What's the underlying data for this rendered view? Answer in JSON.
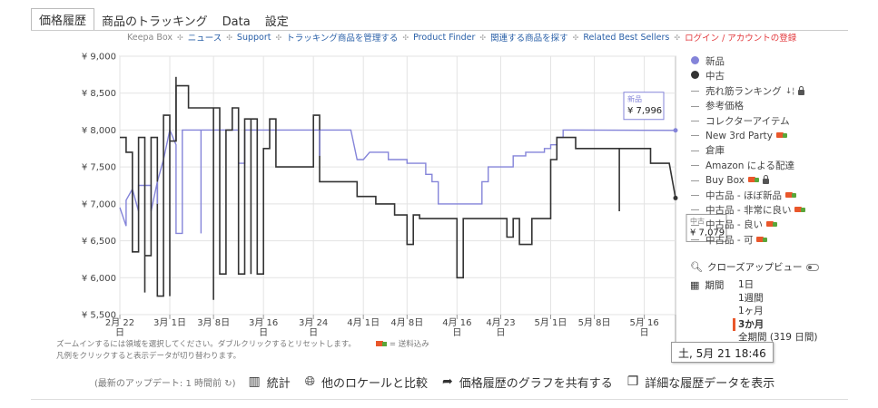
{
  "tabs": [
    {
      "label": "価格履歴",
      "active": true
    },
    {
      "label": "商品のトラッキング",
      "active": false
    },
    {
      "label": "Data",
      "active": false
    },
    {
      "label": "設定",
      "active": false
    }
  ],
  "subnav": [
    {
      "label": "Keepa Box",
      "style": "gray"
    },
    {
      "label": "ニュース",
      "style": "link"
    },
    {
      "label": "Support",
      "style": "link"
    },
    {
      "label": "トラッキング商品を管理する",
      "style": "link"
    },
    {
      "label": "Product Finder",
      "style": "link"
    },
    {
      "label": "関連する商品を探す",
      "style": "link"
    },
    {
      "label": "Related Best Sellers",
      "style": "link"
    },
    {
      "label": "ログイン / アカウントの登録",
      "style": "red"
    }
  ],
  "subnav_sep": "✣",
  "chart_data": {
    "type": "line",
    "y_ticks": [
      "¥ 9,000",
      "¥ 8,500",
      "¥ 8,000",
      "¥ 7,500",
      "¥ 7,000",
      "¥ 6,500",
      "¥ 6,000",
      "¥ 5,500"
    ],
    "ylim": [
      5500,
      9000
    ],
    "x_range": [
      "2024-02-22",
      "2024-05-21"
    ],
    "x_ticks": [
      {
        "date": "2024-02-22",
        "line1": "2月 22",
        "line2": "日"
      },
      {
        "date": "2024-03-01",
        "line1": "3月 1日",
        "line2": ""
      },
      {
        "date": "2024-03-08",
        "line1": "3月 8日",
        "line2": ""
      },
      {
        "date": "2024-03-16",
        "line1": "3月 16",
        "line2": "日"
      },
      {
        "date": "2024-03-24",
        "line1": "3月 24",
        "line2": "日"
      },
      {
        "date": "2024-04-01",
        "line1": "4月 1日",
        "line2": ""
      },
      {
        "date": "2024-04-08",
        "line1": "4月 8日",
        "line2": ""
      },
      {
        "date": "2024-04-16",
        "line1": "4月 16",
        "line2": "日"
      },
      {
        "date": "2024-04-23",
        "line1": "4月 23",
        "line2": "日"
      },
      {
        "date": "2024-05-01",
        "line1": "5月 1日",
        "line2": ""
      },
      {
        "date": "2024-05-08",
        "line1": "5月 8日",
        "line2": ""
      },
      {
        "date": "2024-05-16",
        "line1": "5月 16",
        "line2": "日"
      }
    ],
    "grid": true,
    "series": [
      {
        "name": "新品",
        "color": "#8484d9",
        "points": [
          [
            "2024-02-22",
            6950
          ],
          [
            "2024-02-23",
            6700
          ],
          [
            "2024-02-23",
            7050
          ],
          [
            "2024-02-24",
            7200
          ],
          [
            "2024-02-25",
            6900
          ],
          [
            "2024-02-25",
            7250
          ],
          [
            "2024-02-27",
            7250
          ],
          [
            "2024-02-27",
            6900
          ],
          [
            "2024-02-28",
            7300
          ],
          [
            "2024-02-29",
            7600
          ],
          [
            "2024-03-01",
            8000
          ],
          [
            "2024-03-02",
            7800
          ],
          [
            "2024-03-02",
            6600
          ],
          [
            "2024-03-03",
            6600
          ],
          [
            "2024-03-03",
            8000
          ],
          [
            "2024-03-12",
            8000
          ],
          [
            "2024-03-12",
            7550
          ],
          [
            "2024-03-13",
            7550
          ],
          [
            "2024-03-13",
            8000
          ],
          [
            "2024-03-30",
            8000
          ],
          [
            "2024-03-31",
            7600
          ],
          [
            "2024-04-01",
            7600
          ],
          [
            "2024-04-02",
            7700
          ],
          [
            "2024-04-05",
            7700
          ],
          [
            "2024-04-05",
            7600
          ],
          [
            "2024-04-08",
            7600
          ],
          [
            "2024-04-08",
            7550
          ],
          [
            "2024-04-11",
            7550
          ],
          [
            "2024-04-11",
            7400
          ],
          [
            "2024-04-12",
            7400
          ],
          [
            "2024-04-12",
            7300
          ],
          [
            "2024-04-13",
            7300
          ],
          [
            "2024-04-13",
            7000
          ],
          [
            "2024-04-20",
            7000
          ],
          [
            "2024-04-20",
            7300
          ],
          [
            "2024-04-21",
            7300
          ],
          [
            "2024-04-21",
            7500
          ],
          [
            "2024-04-25",
            7500
          ],
          [
            "2024-04-25",
            7650
          ],
          [
            "2024-04-27",
            7650
          ],
          [
            "2024-04-27",
            7700
          ],
          [
            "2024-04-30",
            7700
          ],
          [
            "2024-04-30",
            7750
          ],
          [
            "2024-05-01",
            7750
          ],
          [
            "2024-05-01",
            7800
          ],
          [
            "2024-05-02",
            7800
          ],
          [
            "2024-05-02",
            7900
          ],
          [
            "2024-05-03",
            7900
          ],
          [
            "2024-05-03",
            8000
          ],
          [
            "2024-05-21",
            7996
          ]
        ]
      },
      {
        "name": "中古",
        "color": "#333333",
        "points": [
          [
            "2024-02-22",
            7900
          ],
          [
            "2024-02-23",
            7900
          ],
          [
            "2024-02-23",
            7700
          ],
          [
            "2024-02-24",
            7700
          ],
          [
            "2024-02-24",
            6350
          ],
          [
            "2024-02-25",
            6350
          ],
          [
            "2024-02-25",
            7900
          ],
          [
            "2024-02-26",
            7900
          ],
          [
            "2024-02-26",
            5800
          ],
          [
            "2024-02-26",
            6300
          ],
          [
            "2024-02-27",
            6300
          ],
          [
            "2024-02-27",
            7900
          ],
          [
            "2024-02-28",
            7900
          ],
          [
            "2024-02-28",
            5750
          ],
          [
            "2024-02-29",
            5750
          ],
          [
            "2024-02-29",
            8200
          ],
          [
            "2024-03-01",
            8200
          ],
          [
            "2024-03-01",
            5750
          ],
          [
            "2024-03-01",
            7850
          ],
          [
            "2024-03-02",
            7850
          ],
          [
            "2024-03-02",
            8600
          ],
          [
            "2024-03-04",
            8600
          ],
          [
            "2024-03-04",
            8300
          ],
          [
            "2024-03-09",
            8300
          ],
          [
            "2024-03-09",
            6050
          ],
          [
            "2024-03-10",
            6050
          ],
          [
            "2024-03-10",
            8000
          ],
          [
            "2024-03-11",
            8000
          ],
          [
            "2024-03-11",
            8300
          ],
          [
            "2024-03-12",
            8300
          ],
          [
            "2024-03-12",
            6050
          ],
          [
            "2024-03-13",
            6050
          ],
          [
            "2024-03-13",
            8150
          ],
          [
            "2024-03-15",
            8150
          ],
          [
            "2024-03-15",
            6050
          ],
          [
            "2024-03-16",
            6050
          ],
          [
            "2024-03-16",
            7750
          ],
          [
            "2024-03-17",
            7750
          ],
          [
            "2024-03-17",
            8150
          ],
          [
            "2024-03-18",
            8150
          ],
          [
            "2024-03-18",
            7500
          ],
          [
            "2024-03-24",
            7500
          ],
          [
            "2024-03-24",
            8200
          ],
          [
            "2024-03-25",
            8200
          ],
          [
            "2024-03-25",
            7300
          ],
          [
            "2024-03-31",
            7300
          ],
          [
            "2024-03-31",
            7100
          ],
          [
            "2024-04-03",
            7100
          ],
          [
            "2024-04-03",
            7000
          ],
          [
            "2024-04-06",
            7000
          ],
          [
            "2024-04-06",
            6850
          ],
          [
            "2024-04-08",
            6850
          ],
          [
            "2024-04-08",
            6450
          ],
          [
            "2024-04-09",
            6450
          ],
          [
            "2024-04-09",
            6850
          ],
          [
            "2024-04-10",
            6850
          ],
          [
            "2024-04-10",
            6800
          ],
          [
            "2024-04-16",
            6800
          ],
          [
            "2024-04-16",
            6000
          ],
          [
            "2024-04-17",
            6000
          ],
          [
            "2024-04-17",
            6800
          ],
          [
            "2024-04-24",
            6800
          ],
          [
            "2024-04-24",
            6550
          ],
          [
            "2024-04-25",
            6550
          ],
          [
            "2024-04-25",
            6800
          ],
          [
            "2024-04-26",
            6800
          ],
          [
            "2024-04-26",
            6450
          ],
          [
            "2024-04-28",
            6450
          ],
          [
            "2024-04-28",
            6800
          ],
          [
            "2024-05-01",
            6800
          ],
          [
            "2024-05-01",
            7600
          ],
          [
            "2024-05-02",
            7600
          ],
          [
            "2024-05-02",
            7900
          ],
          [
            "2024-05-05",
            7900
          ],
          [
            "2024-05-05",
            7750
          ],
          [
            "2024-05-17",
            7750
          ],
          [
            "2024-05-17",
            7550
          ],
          [
            "2024-05-20",
            7550
          ],
          [
            "2024-05-21",
            7079
          ]
        ]
      }
    ],
    "spikes": [
      {
        "series": "新品",
        "date": "2024-02-28",
        "from": 7300,
        "to": 7000
      },
      {
        "series": "新品",
        "date": "2024-03-06",
        "from": 8000,
        "to": 6600
      },
      {
        "series": "新品",
        "date": "2024-03-25",
        "from": 8000,
        "to": 7650
      },
      {
        "series": "中古",
        "date": "2024-03-02",
        "from": 7850,
        "to": 8720
      },
      {
        "series": "中古",
        "date": "2024-03-08",
        "from": 8300,
        "to": 5700
      },
      {
        "series": "中古",
        "date": "2024-03-14",
        "from": 8150,
        "to": 6050
      },
      {
        "series": "中古",
        "date": "2024-05-12",
        "from": 7750,
        "to": 6900
      }
    ],
    "end_labels": [
      {
        "series": "新品",
        "label": "新品",
        "value_text": "¥ 7,996"
      },
      {
        "series": "中古",
        "label": "中古",
        "value_text": "¥ 7,079"
      }
    ]
  },
  "legend": [
    {
      "kind": "dot",
      "color": "#8484d9",
      "label": "新品"
    },
    {
      "kind": "dot",
      "color": "#333333",
      "label": "中古"
    },
    {
      "kind": "dash",
      "label": "売れ筋ランキング",
      "sort": "↓¦",
      "lock": true
    },
    {
      "kind": "dash",
      "label": "参考価格"
    },
    {
      "kind": "dash",
      "label": "コレクターアイテム"
    },
    {
      "kind": "dash",
      "label": "New 3rd Party",
      "truck": true
    },
    {
      "kind": "dash",
      "label": "倉庫"
    },
    {
      "kind": "dash",
      "label": "Amazon による配達"
    },
    {
      "kind": "dash",
      "label": "Buy Box",
      "truck": true,
      "lock": true
    },
    {
      "kind": "dash",
      "label": "中古品 - ほぼ新品",
      "truck": true
    },
    {
      "kind": "dash",
      "label": "中古品 - 非常に良い",
      "truck": true
    },
    {
      "kind": "dash",
      "label": "中古品 - 良い",
      "truck": true
    },
    {
      "kind": "dash",
      "label": "中古品 - 可",
      "truck": true
    }
  ],
  "closeup": {
    "label": "クローズアップビュー"
  },
  "period": {
    "label": "期間",
    "options": [
      {
        "label": "1日",
        "active": false
      },
      {
        "label": "1週間",
        "active": false
      },
      {
        "label": "1ヶ月",
        "active": false
      },
      {
        "label": "3か月",
        "active": true
      },
      {
        "label": "全期間 (319 日間)",
        "active": false
      }
    ]
  },
  "note": {
    "line1": "ズームインするには領域を選択してください。ダブルクリックするとリセットします。",
    "shipping": "= 送料込み",
    "line2": "凡例をクリックすると表示データが切り替わります。"
  },
  "timestamp": "土, 5月 21 18:46",
  "bottom": {
    "update": "(最新のアップデート: 1 時間前",
    "actions": [
      {
        "icon": "bar-chart-icon",
        "label": "統計"
      },
      {
        "icon": "globe-icon",
        "label": "他のロケールと比較"
      },
      {
        "icon": "share-icon",
        "label": "価格履歴のグラフを共有する"
      },
      {
        "icon": "copy-icon",
        "label": "詳細な履歴データを表示"
      }
    ]
  }
}
